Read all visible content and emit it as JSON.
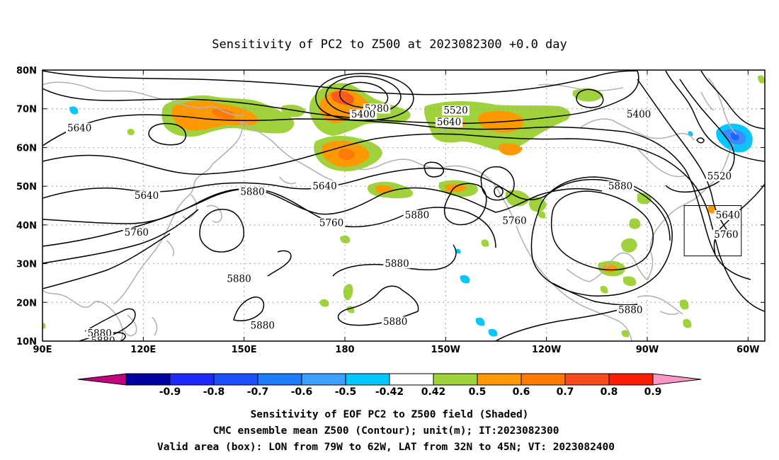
{
  "title": "Sensitivity of PC2 to Z500 at 2023082300 +0.0 day",
  "lat_labels": [
    "80N",
    "70N",
    "60N",
    "50N",
    "40N",
    "30N",
    "20N",
    "10N"
  ],
  "lon_labels": [
    "90E",
    "120E",
    "150E",
    "180",
    "150W",
    "120W",
    "90W",
    "60W"
  ],
  "contour_labels": [
    {
      "text": "5280",
      "lon": -170.5,
      "lat": 69.5
    },
    {
      "text": "5400",
      "lon": -174.5,
      "lat": 68.0
    },
    {
      "text": "5520",
      "lon": -147.0,
      "lat": 69.0
    },
    {
      "text": "5400",
      "lon": -92.5,
      "lat": 68.0
    },
    {
      "text": "5640",
      "lon": -149.0,
      "lat": 66.0
    },
    {
      "text": "5640",
      "lon": 101.0,
      "lat": 64.5
    },
    {
      "text": "5520",
      "lon": -68.5,
      "lat": 52.0
    },
    {
      "text": "5640",
      "lon": 174.0,
      "lat": 49.5
    },
    {
      "text": "5640",
      "lon": 121.0,
      "lat": 47.0
    },
    {
      "text": "5880",
      "lon": 152.5,
      "lat": 48.0
    },
    {
      "text": "5880",
      "lon": -98.0,
      "lat": 49.5
    },
    {
      "text": "5640",
      "lon": -66.0,
      "lat": 42.0
    },
    {
      "text": "5880",
      "lon": -158.5,
      "lat": 42.0
    },
    {
      "text": "5760",
      "lon": -129.5,
      "lat": 40.5
    },
    {
      "text": "5760",
      "lon": 176.0,
      "lat": 40.0
    },
    {
      "text": "5760",
      "lon": 118.0,
      "lat": 37.5
    },
    {
      "text": "5760",
      "lon": -66.5,
      "lat": 37.0
    },
    {
      "text": "5880",
      "lon": -164.5,
      "lat": 29.5
    },
    {
      "text": "5880",
      "lon": 148.5,
      "lat": 25.5
    },
    {
      "text": "5880",
      "lon": -95.0,
      "lat": 17.5
    },
    {
      "text": "5880",
      "lon": -165.0,
      "lat": 14.5
    },
    {
      "text": "5880",
      "lon": 155.5,
      "lat": 13.5
    },
    {
      "text": "5880",
      "lon": 107.0,
      "lat": 11.5
    },
    {
      "text": "5880",
      "lon": 108.0,
      "lat": 9.5
    }
  ],
  "contour_interval_m": 60,
  "shading": {
    "threshold": 0.42,
    "palette": {
      "n09": "#c0007e",
      "n08": "#0000c8",
      "n07": "#1e3cff",
      "n06": "#1e64ff",
      "n05": "#3c8cff",
      "n04": "#00c8ff",
      "p04": "#a0d23c",
      "p05": "#ff9900",
      "p06": "#ff7a00",
      "p07": "#ff5a1e",
      "p08": "#ff2800",
      "p09": "#ff96c8"
    }
  },
  "colorbar": {
    "labels": [
      "-0.9",
      "-0.8",
      "-0.7",
      "-0.6",
      "-0.5",
      "-0.42",
      "0.42",
      "0.5",
      "0.6",
      "0.7",
      "0.8",
      "0.9"
    ],
    "colors": [
      "#0000a0",
      "#1e28ff",
      "#1e50ff",
      "#1e7cff",
      "#3ca0ff",
      "#00c8ff",
      "#ffffff",
      "#a0d23c",
      "#ff9900",
      "#ff7a00",
      "#ff4a1e",
      "#ff1e00"
    ],
    "low_arrow_color": "#c0007e",
    "high_arrow_color": "#ff96c8"
  },
  "valid_box": {
    "lon_west": -79,
    "lon_east": -62,
    "lat_south": 32,
    "lat_north": 45
  },
  "captions": [
    "Sensitivity of EOF PC2 to Z500 field (Shaded)",
    "CMC ensemble mean Z500 (Contour); unit(m); IT:2023082300",
    "Valid area (box): LON from 79W to 62W, LAT from 32N to 45N; VT: 2023082400"
  ]
}
